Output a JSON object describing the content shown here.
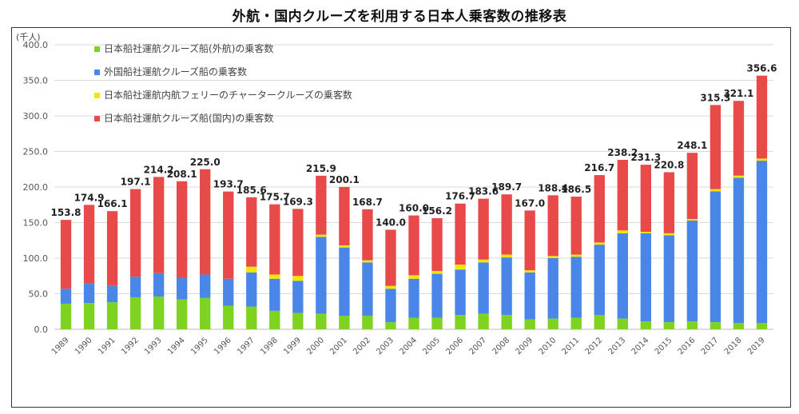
{
  "page": {
    "title": "外航・国内クルーズを利用する日本人乗客数の推移表"
  },
  "chart_data": {
    "type": "bar",
    "stacked": true,
    "unit_label": "(千人)",
    "ylim": [
      0,
      400
    ],
    "yticks": [
      "0.0",
      "50.0",
      "100.0",
      "150.0",
      "200.0",
      "250.0",
      "300.0",
      "350.0",
      "400.0"
    ],
    "grid": true,
    "legend_position": "top-left",
    "categories": [
      "1989",
      "1990",
      "1991",
      "1992",
      "1993",
      "1994",
      "1995",
      "1996",
      "1997",
      "1998",
      "1999",
      "2000",
      "2001",
      "2002",
      "2003",
      "2004",
      "2005",
      "2006",
      "2007",
      "2008",
      "2009",
      "2010",
      "2011",
      "2012",
      "2013",
      "2014",
      "2015",
      "2016",
      "2017",
      "2018",
      "2019"
    ],
    "series": [
      {
        "name": "日本船社運航クルーズ船(外航)の乗客数",
        "color": "#7ed321",
        "values": [
          36,
          37,
          38,
          45,
          46,
          42,
          44,
          33,
          32,
          26,
          23,
          22,
          19,
          19,
          10,
          16,
          16,
          20,
          22,
          20,
          14,
          15,
          16,
          20,
          15,
          11,
          10,
          11,
          10,
          9,
          9
        ]
      },
      {
        "name": "外国船社運航クルーズ船の乗客数",
        "color": "#4a86e8",
        "values": [
          21,
          28,
          23,
          29,
          33,
          30,
          33,
          38,
          48,
          45,
          45,
          108,
          96,
          75,
          47,
          55,
          62,
          64,
          72,
          81,
          66,
          85,
          86,
          99,
          120,
          124,
          122,
          142,
          184,
          204,
          228
        ]
      },
      {
        "name": "日本船社運航内航フェリーのチャータークルーズの乗客数",
        "color": "#f2e600",
        "values": [
          0,
          0,
          0,
          0,
          0,
          0,
          0,
          0,
          8,
          6,
          7,
          3,
          3,
          3,
          4,
          5,
          4,
          7,
          4,
          4,
          3,
          3,
          3,
          3,
          4,
          2,
          3,
          2,
          3,
          3,
          3
        ]
      },
      {
        "name": "日本船社運航クルーズ船(国内)の乗客数",
        "color": "#e84a4a",
        "values": [
          96.8,
          109.9,
          105.1,
          123.1,
          135.2,
          136.1,
          148,
          122.7,
          97.6,
          98.7,
          94.3,
          82.9,
          82.1,
          71.7,
          79,
          84,
          74.2,
          85.7,
          85.6,
          84.7,
          84,
          85.4,
          81.5,
          94.8,
          99.2,
          94.3,
          85.8,
          93.1,
          118.3,
          105.1,
          116.6
        ]
      }
    ],
    "totals": [
      "153.8",
      "174.9",
      "166.1",
      "197.1",
      "214.2",
      "208.1",
      "225.0",
      "193.7",
      "185.6",
      "175.7",
      "169.3",
      "215.9",
      "200.1",
      "168.7",
      "140.0",
      "160.0",
      "156.2",
      "176.7",
      "183.6",
      "189.7",
      "167.0",
      "188.4",
      "186.5",
      "216.7",
      "238.2",
      "231.3",
      "220.8",
      "248.1",
      "315.3",
      "321.1",
      "356.6"
    ]
  }
}
